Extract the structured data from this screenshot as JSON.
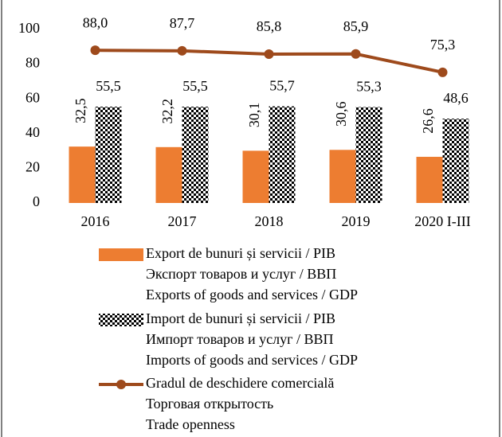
{
  "chart_data": {
    "type": "bar_line",
    "categories": [
      "2016",
      "2017",
      "2018",
      "2019",
      "2020 I-III"
    ],
    "ylim": [
      0,
      100
    ],
    "yticks": [
      0,
      20,
      40,
      60,
      80,
      100
    ],
    "grid": false,
    "series": [
      {
        "name": [
          "Export de bunuri și servicii / PIB",
          "Экспорт товаров и услуг / ВВП",
          "Exports of goods and services / GDP"
        ],
        "type": "bar",
        "color": "#ed7d31",
        "values": [
          32.5,
          32.2,
          30.1,
          30.6,
          26.6
        ],
        "value_labels": [
          "32,5",
          "32,2",
          "30,1",
          "30,6",
          "26,6"
        ]
      },
      {
        "name": [
          "Import de bunuri și servicii / PIB",
          "Импорт товаров и услуг / ВВП",
          "Imports of goods and services / GDP"
        ],
        "type": "bar",
        "pattern": "checker",
        "color": "#000000",
        "values": [
          55.5,
          55.5,
          55.7,
          55.3,
          48.6
        ],
        "value_labels": [
          "55,5",
          "55,5",
          "55,7",
          "55,3",
          "48,6"
        ]
      },
      {
        "name": [
          "Gradul de deschidere comercială",
          "Торговая открытость",
          "Trade openness"
        ],
        "type": "line",
        "color": "#9e4a1c",
        "values": [
          88.0,
          87.7,
          85.8,
          85.9,
          75.3
        ],
        "value_labels": [
          "88,0",
          "87,7",
          "85,8",
          "85,9",
          "75,3"
        ]
      }
    ]
  }
}
